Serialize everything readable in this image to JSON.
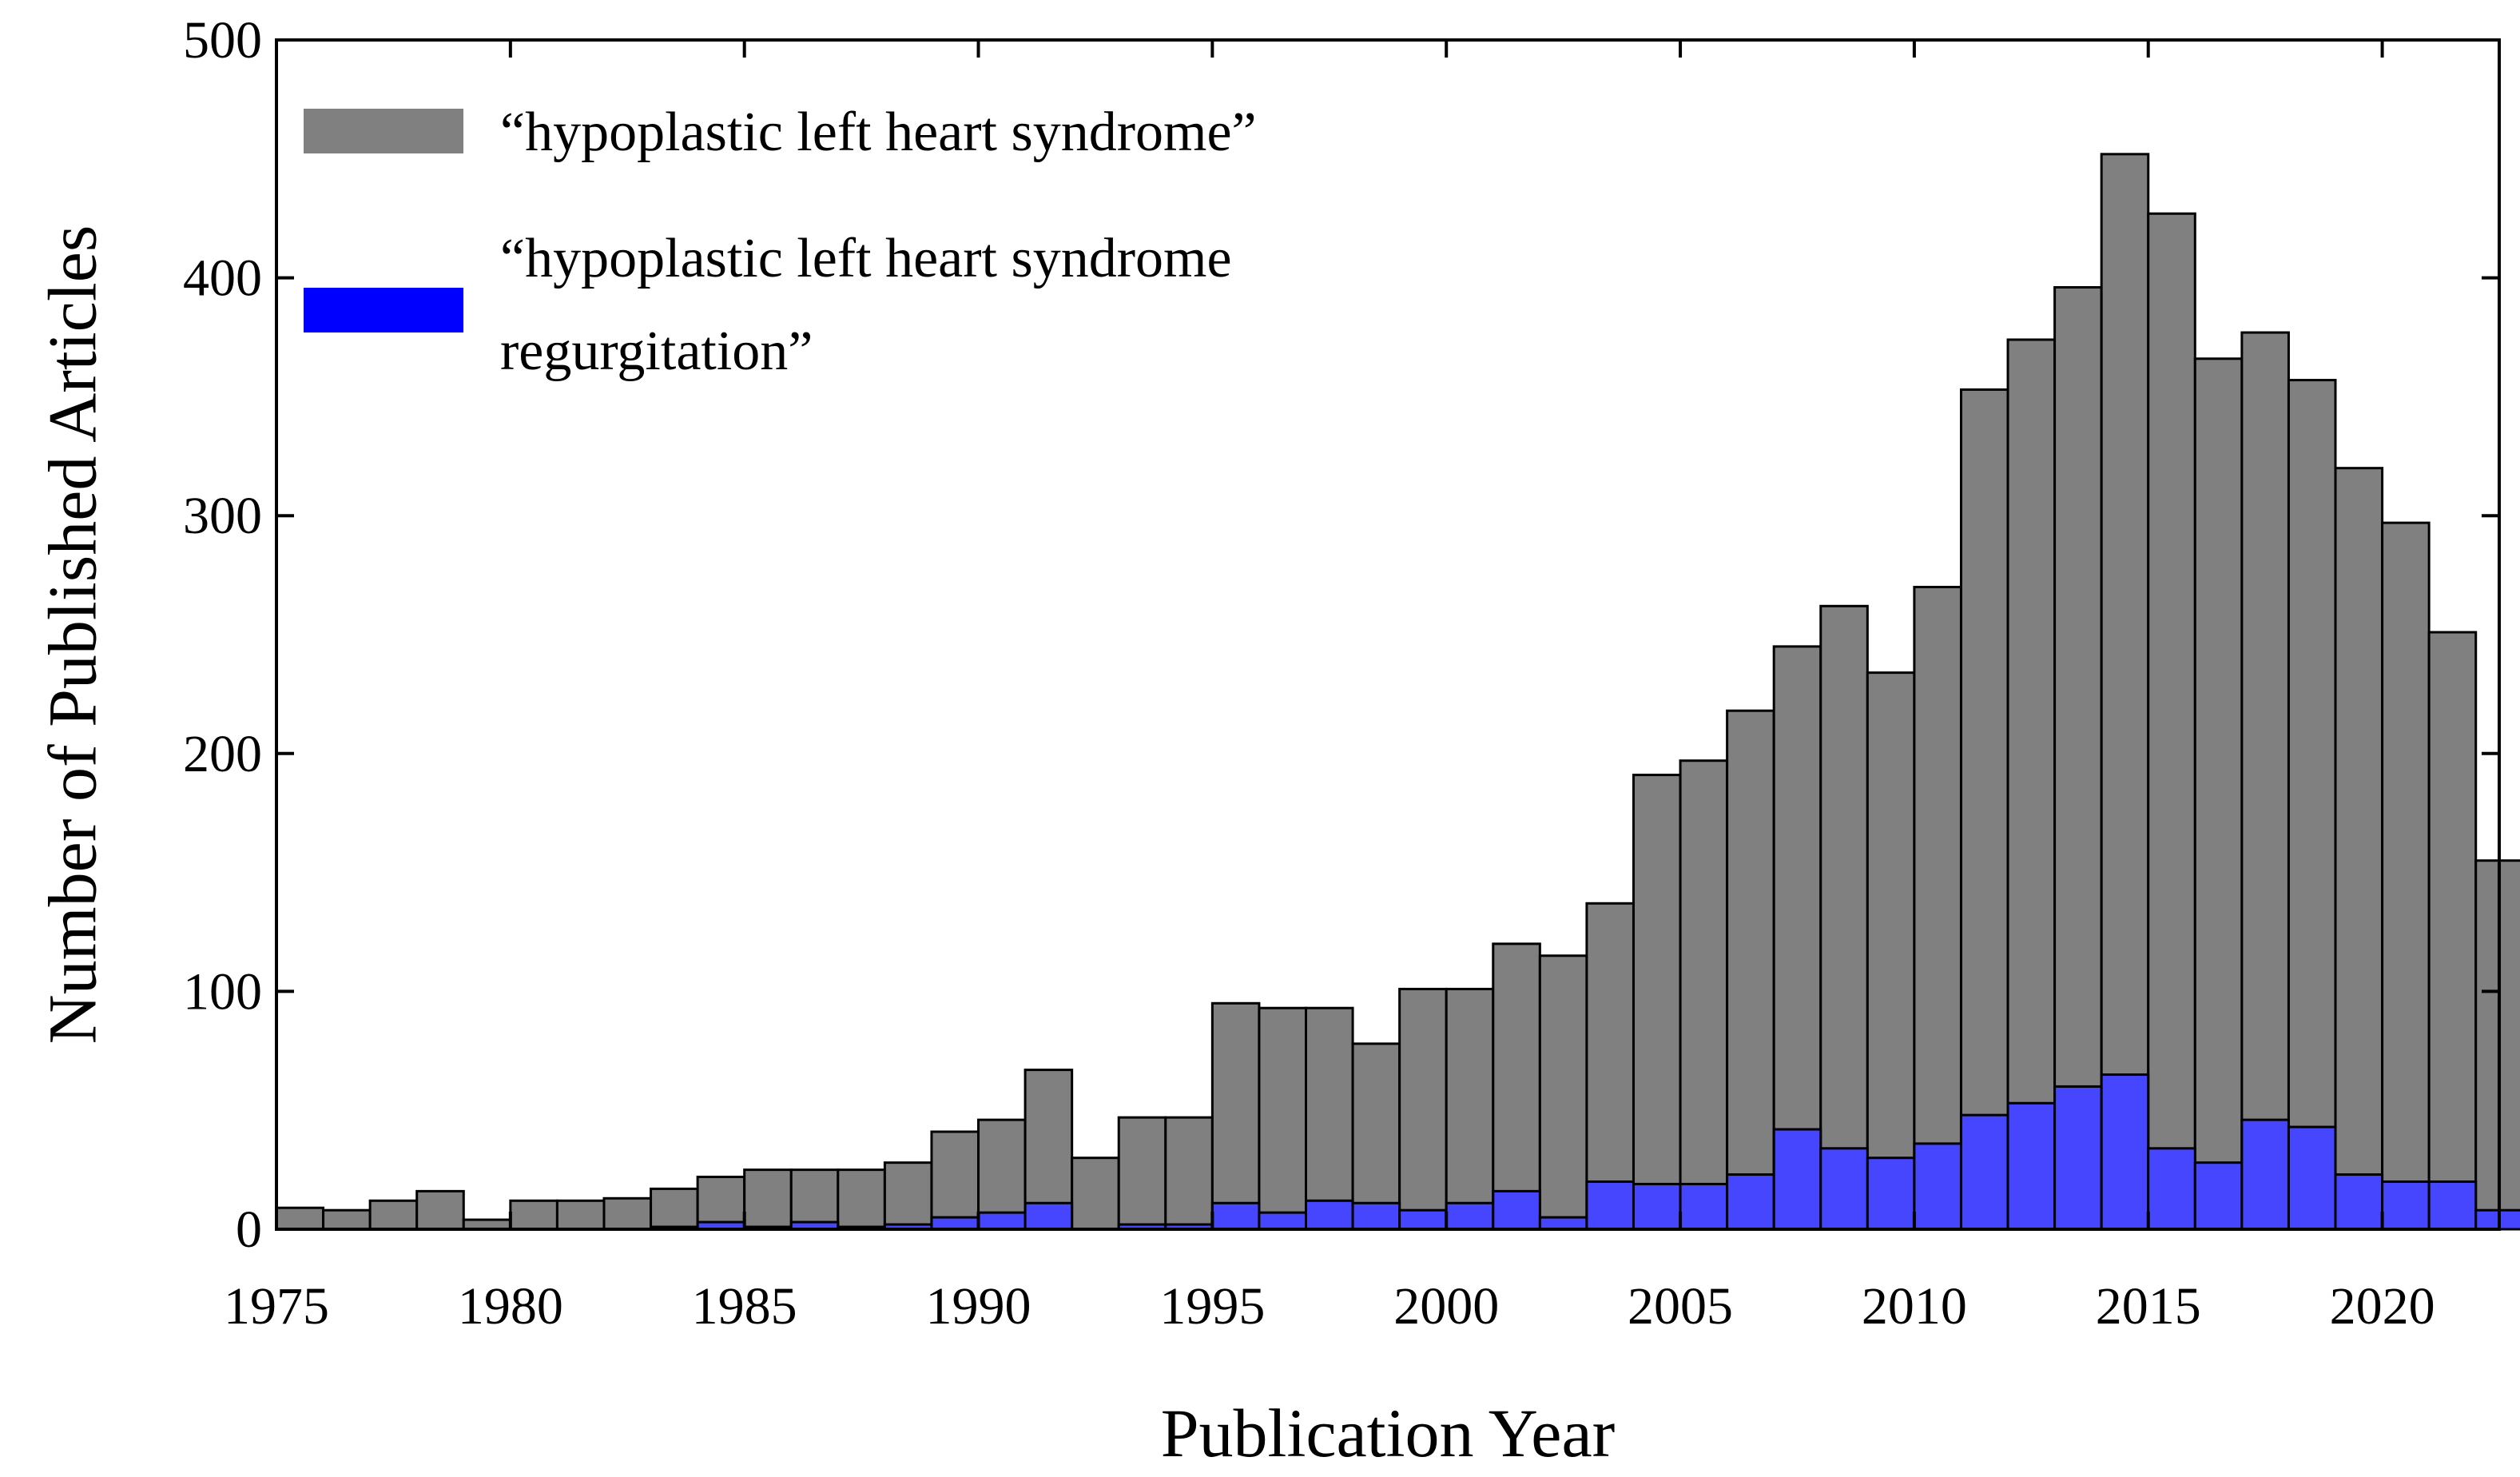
{
  "chart_data": {
    "type": "bar",
    "xlabel": "Publication Year",
    "ylabel": "Number of Published Articles",
    "ylim": [
      0,
      500
    ],
    "xlim": [
      1975,
      2022.5
    ],
    "yticks": [
      0,
      100,
      200,
      300,
      400,
      500
    ],
    "xticks": [
      1975,
      1980,
      1985,
      1990,
      1995,
      2000,
      2005,
      2010,
      2015,
      2020
    ],
    "x": [
      1975,
      1976,
      1977,
      1978,
      1979,
      1980,
      1981,
      1982,
      1983,
      1984,
      1985,
      1986,
      1987,
      1988,
      1989,
      1990,
      1991,
      1992,
      1993,
      1994,
      1995,
      1996,
      1997,
      1998,
      1999,
      2000,
      2001,
      2002,
      2003,
      2004,
      2005,
      2006,
      2007,
      2008,
      2009,
      2010,
      2011,
      2012,
      2013,
      2014,
      2015,
      2016,
      2017,
      2018,
      2019,
      2020,
      2021,
      2022
    ],
    "series": [
      {
        "name": "“hypoplastic left heart syndrome”",
        "color": "#808080",
        "values": [
          9,
          8,
          12,
          16,
          4,
          12,
          12,
          13,
          17,
          22,
          25,
          25,
          25,
          28,
          41,
          46,
          67,
          30,
          47,
          47,
          95,
          93,
          93,
          78,
          101,
          101,
          120,
          115,
          137,
          191,
          197,
          218,
          245,
          262,
          234,
          270,
          353,
          374,
          396,
          452,
          427,
          366,
          377,
          357,
          320,
          297,
          251,
          155
        ]
      },
      {
        "name": "“hypoplastic left heart syndrome regurgitation”",
        "legend_lines": [
          "“hypoplastic left heart syndrome",
          "regurgitation”"
        ],
        "color": "#4646ff",
        "legend_color": "#0000ff",
        "values": [
          0,
          0,
          0,
          0,
          0,
          0,
          0,
          0,
          1,
          3,
          1,
          3,
          1,
          2,
          5,
          7,
          11,
          0,
          2,
          2,
          11,
          7,
          12,
          11,
          8,
          11,
          16,
          5,
          20,
          19,
          19,
          23,
          42,
          34,
          30,
          36,
          48,
          53,
          60,
          65,
          34,
          28,
          46,
          43,
          23,
          20,
          20,
          8
        ]
      }
    ],
    "legend_position": "top-left",
    "grid": false
  }
}
